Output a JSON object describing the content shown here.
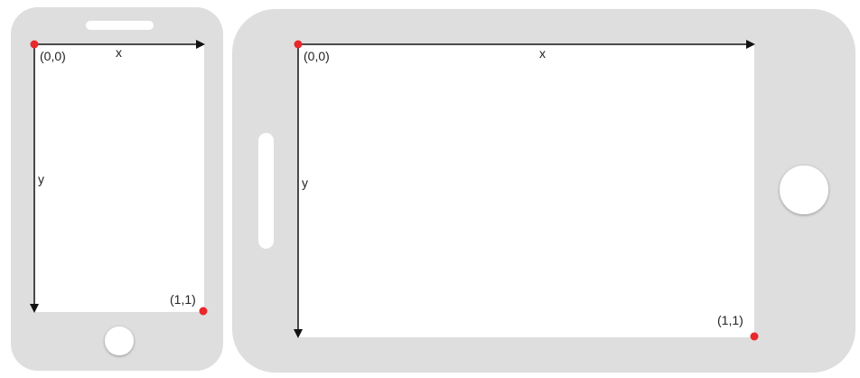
{
  "portrait": {
    "origin_label": "(0,0)",
    "x_label": "x",
    "y_label": "y",
    "corner_label": "(1,1)"
  },
  "landscape": {
    "origin_label": "(0,0)",
    "x_label": "x",
    "y_label": "y",
    "corner_label": "(1,1)"
  },
  "colors": {
    "device_body": "#dedede",
    "screen": "#ffffff",
    "axis": "#111111",
    "marker": "#e8282b"
  }
}
